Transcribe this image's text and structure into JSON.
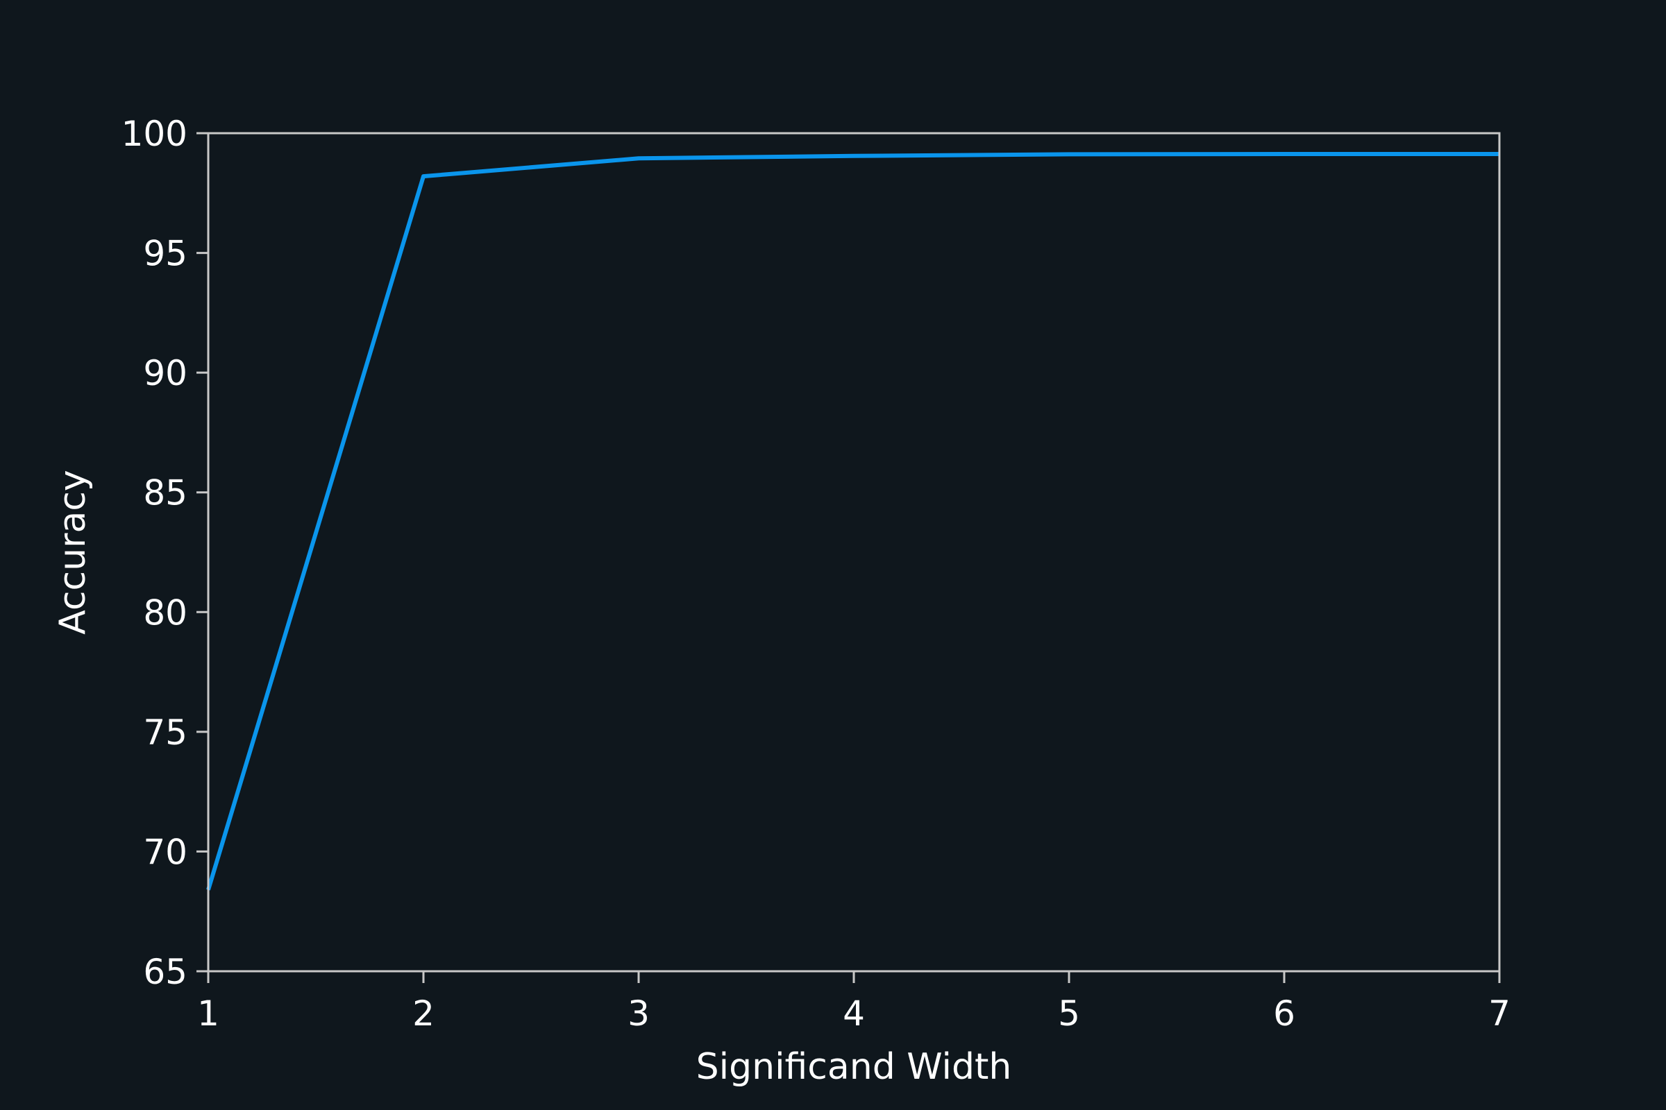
{
  "colors": {
    "background": "#0f171d",
    "axes": "#c8c8c8",
    "text": "#ffffff",
    "line": "#0a95ec"
  },
  "chart_data": {
    "type": "line",
    "xlabel": "Significand Width",
    "ylabel": "Accuracy",
    "xlim": [
      1,
      7
    ],
    "ylim": [
      65,
      100
    ],
    "xticks": [
      1,
      2,
      3,
      4,
      5,
      6,
      7
    ],
    "yticks": [
      65,
      70,
      75,
      80,
      85,
      90,
      95,
      100
    ],
    "x": [
      1,
      2,
      3,
      4,
      5,
      6,
      7
    ],
    "series": [
      {
        "values": [
          68.4,
          98.2,
          98.95,
          99.05,
          99.12,
          99.13,
          99.13
        ],
        "color": "#0a95ec"
      }
    ],
    "grid": false,
    "legend": "none"
  }
}
